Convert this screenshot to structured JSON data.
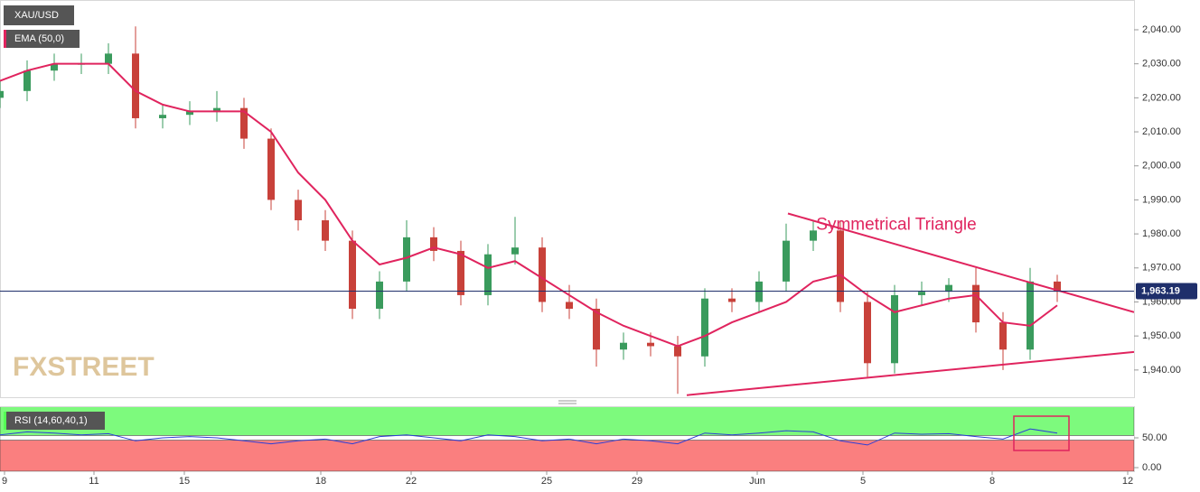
{
  "chart_data": [
    {
      "type": "candlestick",
      "title": "XAU/USD",
      "watermark": "FXSTREET",
      "x": [
        0,
        3,
        6,
        9,
        12,
        15,
        18,
        21,
        24,
        27,
        30,
        33,
        36,
        39,
        42,
        45,
        48,
        51,
        54,
        57,
        60,
        63,
        66,
        69,
        72,
        75,
        78,
        81,
        84,
        87,
        90,
        93,
        96,
        99,
        102,
        105,
        108,
        111,
        114,
        117
      ],
      "open": [
        2020,
        2022,
        2028,
        2030,
        2030,
        2033,
        2014,
        2015,
        2016,
        2017,
        2008,
        1990,
        1984,
        1978,
        1958,
        1966,
        1979,
        1975,
        1962,
        1974,
        1976,
        1960,
        1958,
        1946,
        1948,
        1947,
        1944,
        1961,
        1960,
        1966,
        1978,
        1981,
        1960,
        1942,
        1962,
        1963,
        1965,
        1954,
        1946,
        1966
      ],
      "high": [
        2025,
        2031,
        2033,
        2033,
        2036,
        2041,
        2018,
        2019,
        2022,
        2020,
        2011,
        1993,
        1987,
        1981,
        1969,
        1984,
        1982,
        1978,
        1977,
        1985,
        1979,
        1965,
        1961,
        1951,
        1951,
        1950,
        1964,
        1964,
        1969,
        1983,
        1984,
        1984,
        1963,
        1965,
        1966,
        1967,
        1970,
        1957,
        1970,
        1968
      ],
      "low": [
        2017,
        2019,
        2025,
        2027,
        2027,
        2011,
        2011,
        2012,
        2013,
        2005,
        1987,
        1981,
        1975,
        1955,
        1955,
        1963,
        1972,
        1959,
        1959,
        1971,
        1957,
        1955,
        1941,
        1943,
        1944,
        1933,
        1941,
        1957,
        1957,
        1963,
        1975,
        1957,
        1938,
        1939,
        1959,
        1960,
        1951,
        1940,
        1943,
        1960
      ],
      "close": [
        2022,
        2028,
        2030,
        2030,
        2033,
        2014,
        2015,
        2016,
        2017,
        2008,
        1990,
        1984,
        1978,
        1958,
        1966,
        1979,
        1975,
        1962,
        1974,
        1976,
        1960,
        1958,
        1946,
        1948,
        1947,
        1944,
        1961,
        1960,
        1966,
        1978,
        1981,
        1960,
        1942,
        1962,
        1963,
        1965,
        1954,
        1946,
        1966,
        1963
      ],
      "up_color": "#3a9b5d",
      "down_color": "#c8413a",
      "series": [
        {
          "name": "EMA (50,0)",
          "color": "#e0245e",
          "values": [
            2025,
            2028,
            2030,
            2030,
            2030,
            2022,
            2018,
            2016,
            2016,
            2016,
            2010,
            1998,
            1990,
            1978,
            1971,
            1973,
            1976,
            1974,
            1970,
            1972,
            1967,
            1962,
            1957,
            1953,
            1950,
            1947,
            1950,
            1954,
            1957,
            1960,
            1966,
            1968,
            1962,
            1957,
            1959,
            1961,
            1962,
            1954,
            1953,
            1959
          ]
        }
      ],
      "price_line": {
        "value": 1963.19,
        "label": "1,963.19",
        "color": "#1f2f6b"
      },
      "trendlines": [
        {
          "x": [
            87.2,
            125.5
          ],
          "y": [
            1986,
            1957
          ],
          "color": "#e0245e"
        },
        {
          "x": [
            76,
            125.5
          ],
          "y": [
            1932.6,
            1945.3
          ],
          "color": "#e0245e"
        }
      ],
      "annotations": [
        {
          "text": "Symmetrical Triangle",
          "x": 99.2,
          "y": 1982.5,
          "color": "#e0245e"
        }
      ],
      "xlim": [
        0,
        125.5
      ],
      "ylim": [
        1932,
        2048.75
      ],
      "yticks": [
        {
          "value": 1940,
          "label": "1,940.00"
        },
        {
          "value": 1950,
          "label": "1,950.00"
        },
        {
          "value": 1960,
          "label": "1,960.00"
        },
        {
          "value": 1970,
          "label": "1,970.00"
        },
        {
          "value": 1980,
          "label": "1,980.00"
        },
        {
          "value": 1990,
          "label": "1,990.00"
        },
        {
          "value": 2000,
          "label": "2,000.00"
        },
        {
          "value": 2010,
          "label": "2,010.00"
        },
        {
          "value": 2020,
          "label": "2,020.00"
        },
        {
          "value": 2030,
          "label": "2,030.00"
        },
        {
          "value": 2040,
          "label": "2,040.00"
        }
      ],
      "xticks": [
        {
          "value": 0.5,
          "label": "9"
        },
        {
          "value": 10.4,
          "label": "11"
        },
        {
          "value": 20.4,
          "label": "15"
        },
        {
          "value": 35.5,
          "label": "18"
        },
        {
          "value": 45.5,
          "label": "22"
        },
        {
          "value": 60.5,
          "label": "25"
        },
        {
          "value": 70.5,
          "label": "29"
        },
        {
          "value": 83.8,
          "label": "Jun"
        },
        {
          "value": 95.5,
          "label": "5"
        },
        {
          "value": 109.8,
          "label": "8"
        },
        {
          "value": 124.8,
          "label": "12"
        }
      ]
    },
    {
      "type": "line",
      "series": [
        {
          "name": "RSI (14,60,40,1)",
          "color": "#2b3fd6",
          "values": [
            55,
            60,
            58,
            55,
            57,
            45,
            50,
            52,
            50,
            45,
            40,
            45,
            48,
            40,
            52,
            55,
            50,
            45,
            55,
            52,
            45,
            48,
            40,
            48,
            45,
            40,
            58,
            55,
            58,
            62,
            60,
            45,
            38,
            58,
            56,
            57,
            52,
            48,
            65,
            58
          ]
        }
      ],
      "zones": [
        {
          "from": 60,
          "to": 100,
          "color": "#7dfa7d"
        },
        {
          "from": 0,
          "to": 40,
          "color": "#fa7f7f"
        }
      ],
      "ylim": [
        0,
        100
      ],
      "yticks": [
        {
          "value": 0,
          "label": "0.00"
        },
        {
          "value": 50,
          "label": "50.00"
        }
      ]
    }
  ]
}
